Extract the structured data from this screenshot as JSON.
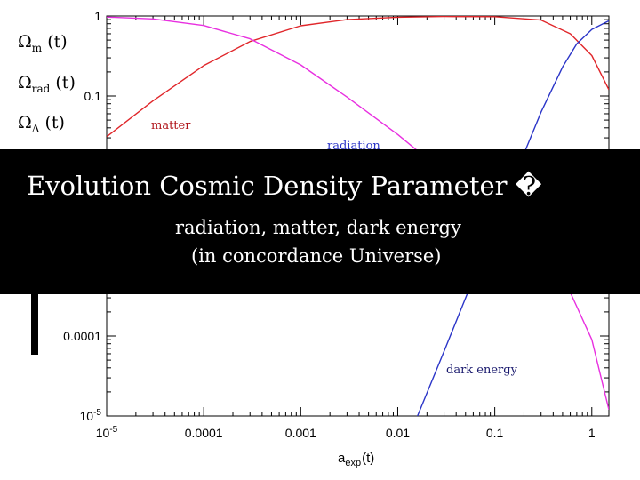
{
  "chart_data": {
    "type": "line",
    "xscale": "log",
    "yscale": "log",
    "xlim": [
      1e-05,
      1.5
    ],
    "ylim": [
      1e-05,
      1
    ],
    "xlabel": "a",
    "xlabel_sub": "exp",
    "xlabel_suffix": "(t)",
    "x_ticks": [
      {
        "value": 1e-05,
        "label": "10",
        "sup": "-5"
      },
      {
        "value": 0.0001,
        "label": "0.0001",
        "sup": ""
      },
      {
        "value": 0.001,
        "label": "0.001",
        "sup": ""
      },
      {
        "value": 0.01,
        "label": "0.01",
        "sup": ""
      },
      {
        "value": 0.1,
        "label": "0.1",
        "sup": ""
      },
      {
        "value": 1,
        "label": "1",
        "sup": ""
      }
    ],
    "y_ticks": [
      {
        "value": 1e-05,
        "label": "10",
        "sup": "-5"
      },
      {
        "value": 0.0001,
        "label": "0.0001",
        "sup": ""
      },
      {
        "value": 0.1,
        "label": "0.1",
        "sup": ""
      },
      {
        "value": 1,
        "label": "1",
        "sup": ""
      }
    ],
    "series": [
      {
        "name": "matter",
        "color": "#e0262a",
        "x": [
          1e-05,
          3e-05,
          0.0001,
          0.0003,
          0.001,
          0.003,
          0.01,
          0.03,
          0.1,
          0.3,
          0.6,
          1,
          1.5
        ],
        "y": [
          0.031,
          0.087,
          0.24,
          0.48,
          0.755,
          0.9,
          0.966,
          0.985,
          0.98,
          0.89,
          0.6,
          0.32,
          0.12
        ]
      },
      {
        "name": "radiation",
        "color": "#e830e0",
        "x": [
          1e-05,
          3e-05,
          0.0001,
          0.0003,
          0.001,
          0.003,
          0.01,
          0.03,
          0.1,
          0.3,
          0.6,
          1,
          1.5
        ],
        "y": [
          0.97,
          0.92,
          0.76,
          0.52,
          0.245,
          0.097,
          0.033,
          0.011,
          0.0033,
          0.00099,
          0.00035,
          9e-05,
          1.2e-05
        ]
      },
      {
        "name": "dark energy",
        "color": "#2b35c8",
        "x": [
          0.016,
          0.03,
          0.1,
          0.2,
          0.3,
          0.5,
          0.7,
          1,
          1.5
        ],
        "y": [
          1e-05,
          6.4e-05,
          0.0024,
          0.019,
          0.063,
          0.23,
          0.45,
          0.68,
          0.87
        ]
      }
    ],
    "legend": [
      {
        "symbol": "Ω",
        "sub": "m",
        "suffix": "(t)",
        "color": "#e0262a"
      },
      {
        "symbol": "Ω",
        "sub": "rad",
        "suffix": "(t)",
        "color": "#e830e0"
      },
      {
        "symbol": "Ω",
        "sub": "Λ",
        "suffix": "(t)",
        "color": "#2b35c8"
      }
    ],
    "annotations": {
      "matter": "matter",
      "radiation": "radiation",
      "dark_energy": "dark energy"
    }
  },
  "banner": {
    "title": "Evolution Cosmic Density Parameter",
    "title_glyph": "�",
    "line1": "radiation, matter, dark energy",
    "line2": "(in concordance Universe)"
  },
  "colors": {
    "matter": "#e0262a",
    "radiation": "#e830e0",
    "dark_energy": "#2b35c8",
    "banner_bg": "#000000",
    "banner_text": "#ffffff"
  }
}
